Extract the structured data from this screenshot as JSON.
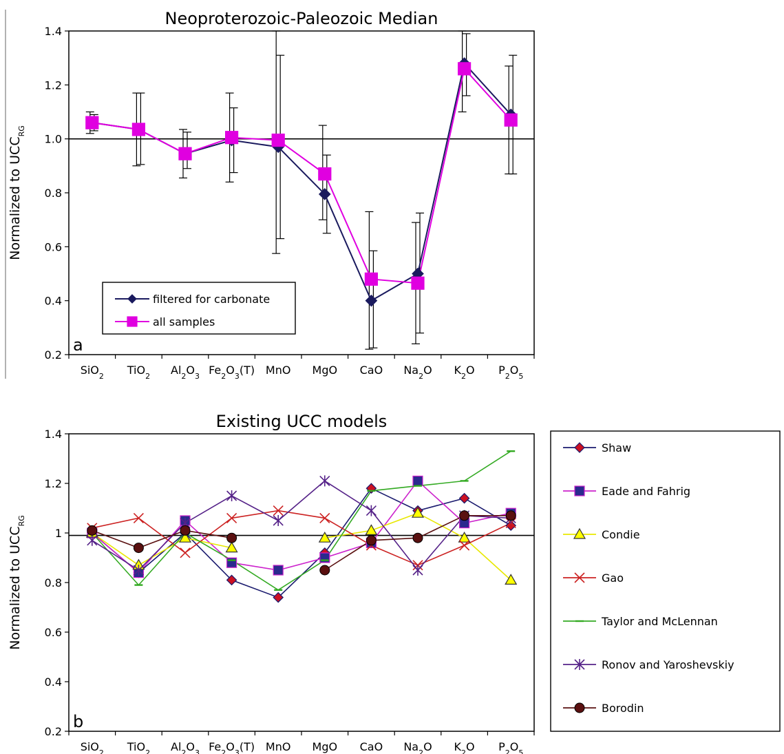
{
  "chart_data": [
    {
      "type": "line",
      "panel_label": "a",
      "title": "Neoproterozoic-Paleozoic Median",
      "ylabel": "Normalized to",
      "ylabel_base": "UCC",
      "ylabel_sub": "RG",
      "ylim": [
        0.2,
        1.4
      ],
      "yticks": [
        "0.2",
        "0.4",
        "0.6",
        "0.8",
        "1.0",
        "1.2",
        "1.4"
      ],
      "reference_line": 1.0,
      "legend_position": "lower-left",
      "categories": [
        {
          "base": "SiO",
          "sub": "2",
          "rest": ""
        },
        {
          "base": "TiO",
          "sub": "2",
          "rest": ""
        },
        {
          "base": "Al",
          "sub": "2",
          "rest": "O",
          "sub2": "3"
        },
        {
          "base": "Fe",
          "sub": "2",
          "rest": "O",
          "sub2": "3",
          "tail": "(T)"
        },
        {
          "base": "MnO",
          "sub": "",
          "rest": ""
        },
        {
          "base": "MgO",
          "sub": "",
          "rest": ""
        },
        {
          "base": "CaO",
          "sub": "",
          "rest": ""
        },
        {
          "base": "Na",
          "sub": "2",
          "rest": "O"
        },
        {
          "base": "K",
          "sub": "2",
          "rest": "O"
        },
        {
          "base": "P",
          "sub": "2",
          "rest": "O",
          "sub2": "5"
        }
      ],
      "series": [
        {
          "name": "filtered for carbonate",
          "color": "#1a1a5e",
          "marker": "diamond",
          "values": [
            1.06,
            1.035,
            0.945,
            0.995,
            0.97,
            0.795,
            0.4,
            0.5,
            1.28,
            1.09
          ],
          "err_low": [
            1.02,
            0.9,
            0.855,
            0.84,
            0.575,
            0.7,
            0.22,
            0.24,
            1.1,
            0.87
          ],
          "err_high": [
            1.1,
            1.17,
            1.035,
            1.17,
            1.4,
            1.05,
            0.73,
            0.69,
            1.4,
            1.27
          ]
        },
        {
          "name": "all samples",
          "color": "#e000e0",
          "marker": "square",
          "values": [
            1.06,
            1.035,
            0.945,
            1.005,
            0.995,
            0.87,
            0.48,
            0.465,
            1.26,
            1.07
          ],
          "err_low": [
            1.03,
            0.905,
            0.89,
            0.875,
            0.63,
            0.65,
            0.225,
            0.28,
            1.16,
            0.87
          ],
          "err_high": [
            1.09,
            1.17,
            1.025,
            1.115,
            1.31,
            0.94,
            0.585,
            0.725,
            1.39,
            1.31
          ]
        }
      ]
    },
    {
      "type": "line",
      "panel_label": "b",
      "title": "Existing UCC models",
      "ylabel": "Normalized to",
      "ylabel_base": "UCC",
      "ylabel_sub": "RG",
      "ylim": [
        0.2,
        1.4
      ],
      "yticks": [
        "0.2",
        "0.4",
        "0.6",
        "0.8",
        "1",
        "1.2",
        "1.4"
      ],
      "reference_line": 0.99,
      "legend_position": "right",
      "series": [
        {
          "name": "Shaw",
          "color": "#1a1a6e",
          "fill": "#cc1122",
          "marker": "diamond",
          "values": [
            1.0,
            0.84,
            1.0,
            0.81,
            0.74,
            0.92,
            1.18,
            1.09,
            1.14,
            1.03
          ]
        },
        {
          "name": "Eade and Fahrig",
          "color": "#cc22cc",
          "fill": "#2a2a8e",
          "marker": "square",
          "values": [
            1.0,
            0.84,
            1.05,
            0.88,
            0.85,
            0.9,
            0.96,
            1.21,
            1.04,
            1.08
          ]
        },
        {
          "name": "Condie",
          "color": "#e8e800",
          "fill": "#ffff00",
          "marker": "triangle",
          "values": [
            1.0,
            0.87,
            0.98,
            0.94,
            null,
            0.98,
            1.01,
            1.08,
            0.98,
            0.81
          ]
        },
        {
          "name": "Gao",
          "color": "#cc2222",
          "fill": "none",
          "marker": "x",
          "values": [
            1.02,
            1.06,
            0.92,
            1.06,
            1.09,
            1.06,
            0.95,
            0.87,
            0.95,
            1.04
          ]
        },
        {
          "name": "Taylor and McLennan",
          "color": "#33aa22",
          "fill": "none",
          "marker": "dash",
          "values": [
            1.0,
            0.79,
            1.0,
            0.89,
            0.77,
            0.89,
            1.17,
            1.19,
            1.21,
            1.33
          ]
        },
        {
          "name": "Ronov and Yaroshevskiy",
          "color": "#552288",
          "fill": "none",
          "marker": "asterisk",
          "values": [
            0.97,
            0.85,
            1.04,
            1.15,
            1.05,
            1.21,
            1.09,
            0.85,
            1.07,
            1.06
          ]
        },
        {
          "name": "Borodin",
          "color": "#5a1010",
          "fill": "#5a1010",
          "marker": "circle",
          "values": [
            1.01,
            0.94,
            1.01,
            0.98,
            null,
            0.85,
            0.97,
            0.98,
            1.07,
            1.07
          ]
        }
      ]
    }
  ]
}
